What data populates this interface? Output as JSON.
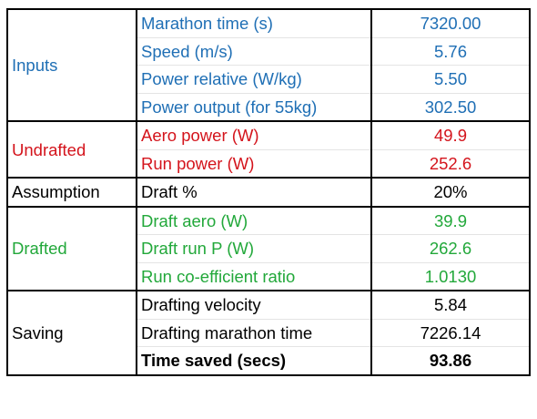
{
  "colors": {
    "inputs": "#1f6fb5",
    "undrafted": "#d4141c",
    "drafted": "#22a83a",
    "default": "#000000"
  },
  "sections": [
    {
      "group": "Inputs",
      "color": "blue",
      "rows": [
        {
          "label": "Marathon time (s)",
          "value": "7320.00"
        },
        {
          "label": "Speed (m/s)",
          "value": "5.76"
        },
        {
          "label": "Power relative (W/kg)",
          "value": "5.50"
        },
        {
          "label": "Power output (for 55kg)",
          "value": "302.50"
        }
      ]
    },
    {
      "group": "Undrafted",
      "color": "red",
      "rows": [
        {
          "label": "Aero power (W)",
          "value": "49.9"
        },
        {
          "label": "Run power (W)",
          "value": "252.6"
        }
      ]
    },
    {
      "group": "Assumption",
      "color": "black",
      "rows": [
        {
          "label": "Draft %",
          "value": "20%"
        }
      ]
    },
    {
      "group": "Drafted",
      "color": "green",
      "rows": [
        {
          "label": "Draft aero  (W)",
          "value": "39.9"
        },
        {
          "label": "Draft run P (W)",
          "value": "262.6"
        },
        {
          "label": "Run co-efficient ratio",
          "value": "1.0130"
        }
      ]
    },
    {
      "group": "Saving",
      "color": "black",
      "rows": [
        {
          "label": "Drafting velocity",
          "value": "5.84"
        },
        {
          "label": "Drafting marathon time",
          "value": "7226.14"
        },
        {
          "label": "Time saved (secs)",
          "value": "93.86"
        }
      ]
    }
  ]
}
